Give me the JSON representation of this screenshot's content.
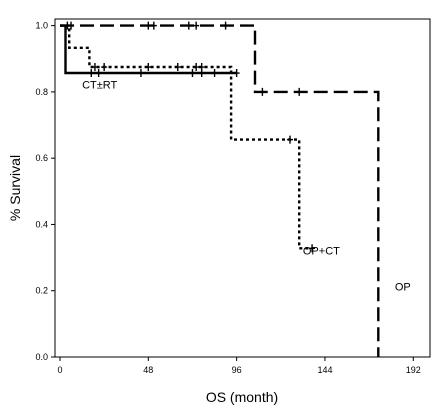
{
  "chart_data": {
    "type": "line",
    "subtype": "kaplan-meier-step",
    "xlabel": "OS (month)",
    "ylabel": "% Survival",
    "xlim": [
      0,
      200
    ],
    "ylim": [
      0,
      1.02
    ],
    "x_ticks": [
      0,
      48,
      96,
      144,
      192
    ],
    "x_tick_labels": [
      "0",
      "48",
      "96",
      "144",
      "192"
    ],
    "y_ticks": [
      0,
      0.2,
      0.4,
      0.6,
      0.8,
      1.0
    ],
    "y_tick_labels": [
      "0.0",
      "0.2",
      "0.4",
      "0.6",
      "0.8",
      "1.0"
    ],
    "grid": false,
    "series": [
      {
        "name": "OP",
        "line_style": "long-dash",
        "steps": [
          [
            0,
            1.0
          ],
          [
            106,
            1.0
          ],
          [
            106,
            0.8
          ],
          [
            173,
            0.8
          ],
          [
            173,
            0.0
          ]
        ],
        "censored": [
          [
            4,
            1.0
          ],
          [
            6,
            1.0
          ],
          [
            48,
            1.0
          ],
          [
            51,
            1.0
          ],
          [
            70,
            1.0
          ],
          [
            74,
            1.0
          ],
          [
            90,
            1.0
          ],
          [
            110,
            0.8
          ],
          [
            130,
            0.8
          ]
        ]
      },
      {
        "name": "OP+CT",
        "line_style": "dotted",
        "steps": [
          [
            0,
            1.0
          ],
          [
            5,
            1.0
          ],
          [
            5,
            0.933
          ],
          [
            16,
            0.933
          ],
          [
            16,
            0.875
          ],
          [
            93,
            0.875
          ],
          [
            93,
            0.656
          ],
          [
            130,
            0.656
          ],
          [
            130,
            0.328
          ],
          [
            137,
            0.328
          ]
        ],
        "censored": [
          [
            19,
            0.875
          ],
          [
            24,
            0.875
          ],
          [
            48,
            0.875
          ],
          [
            64,
            0.875
          ],
          [
            74,
            0.875
          ],
          [
            77,
            0.875
          ],
          [
            125,
            0.656
          ],
          [
            137,
            0.328
          ]
        ]
      },
      {
        "name": "CT±RT",
        "line_style": "solid",
        "steps": [
          [
            0,
            1.0
          ],
          [
            3,
            1.0
          ],
          [
            3,
            0.857
          ],
          [
            96,
            0.857
          ]
        ],
        "censored": [
          [
            17,
            0.857
          ],
          [
            21,
            0.857
          ],
          [
            44,
            0.857
          ],
          [
            72,
            0.857
          ],
          [
            77,
            0.857
          ],
          [
            84,
            0.857
          ],
          [
            96,
            0.857
          ]
        ]
      }
    ],
    "annotations": [
      {
        "text": "CT±RT",
        "x": 12,
        "y": 0.81
      },
      {
        "text": "OP+CT",
        "x": 132,
        "y": 0.31
      },
      {
        "text": "OP",
        "x": 182,
        "y": 0.2
      }
    ]
  }
}
